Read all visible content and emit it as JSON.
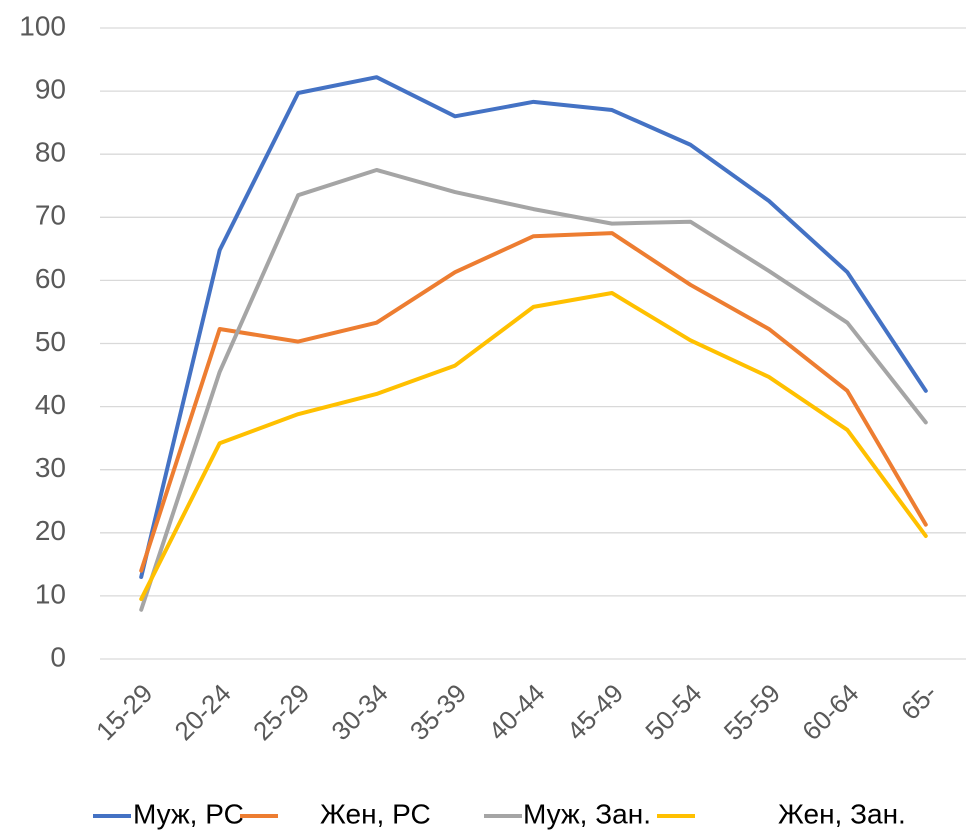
{
  "chart_data": {
    "type": "line",
    "categories": [
      "15-29",
      "20-24",
      "25-29",
      "30-34",
      "35-39",
      "40-44",
      "45-49",
      "50-54",
      "55-59",
      "60-64",
      "65-"
    ],
    "series": [
      {
        "name": "Муж, РС",
        "color": "#4472c4",
        "values": [
          13,
          64.8,
          89.7,
          92.2,
          86,
          88.3,
          87,
          81.5,
          72.6,
          61.3,
          42.5
        ]
      },
      {
        "name": "Жен, РС",
        "color": "#ed7d31",
        "values": [
          14,
          52.3,
          50.3,
          53.3,
          61.3,
          67,
          67.5,
          59.3,
          52.3,
          42.5,
          21.3
        ]
      },
      {
        "name": "Муж, Зан.",
        "color": "#a5a5a5",
        "values": [
          7.8,
          45.5,
          73.5,
          77.5,
          74,
          71.3,
          69,
          69.3,
          61.5,
          53.3,
          37.5
        ]
      },
      {
        "name": "Жен, Зан.",
        "color": "#ffc000",
        "values": [
          9.5,
          34.2,
          38.8,
          42,
          46.5,
          55.8,
          58,
          50.5,
          44.7,
          36.3,
          19.5
        ]
      }
    ],
    "ylim": [
      0,
      100
    ],
    "yticks": [
      0,
      10,
      20,
      30,
      40,
      50,
      60,
      70,
      80,
      90,
      100
    ],
    "grid": true,
    "legend": "bottom"
  }
}
